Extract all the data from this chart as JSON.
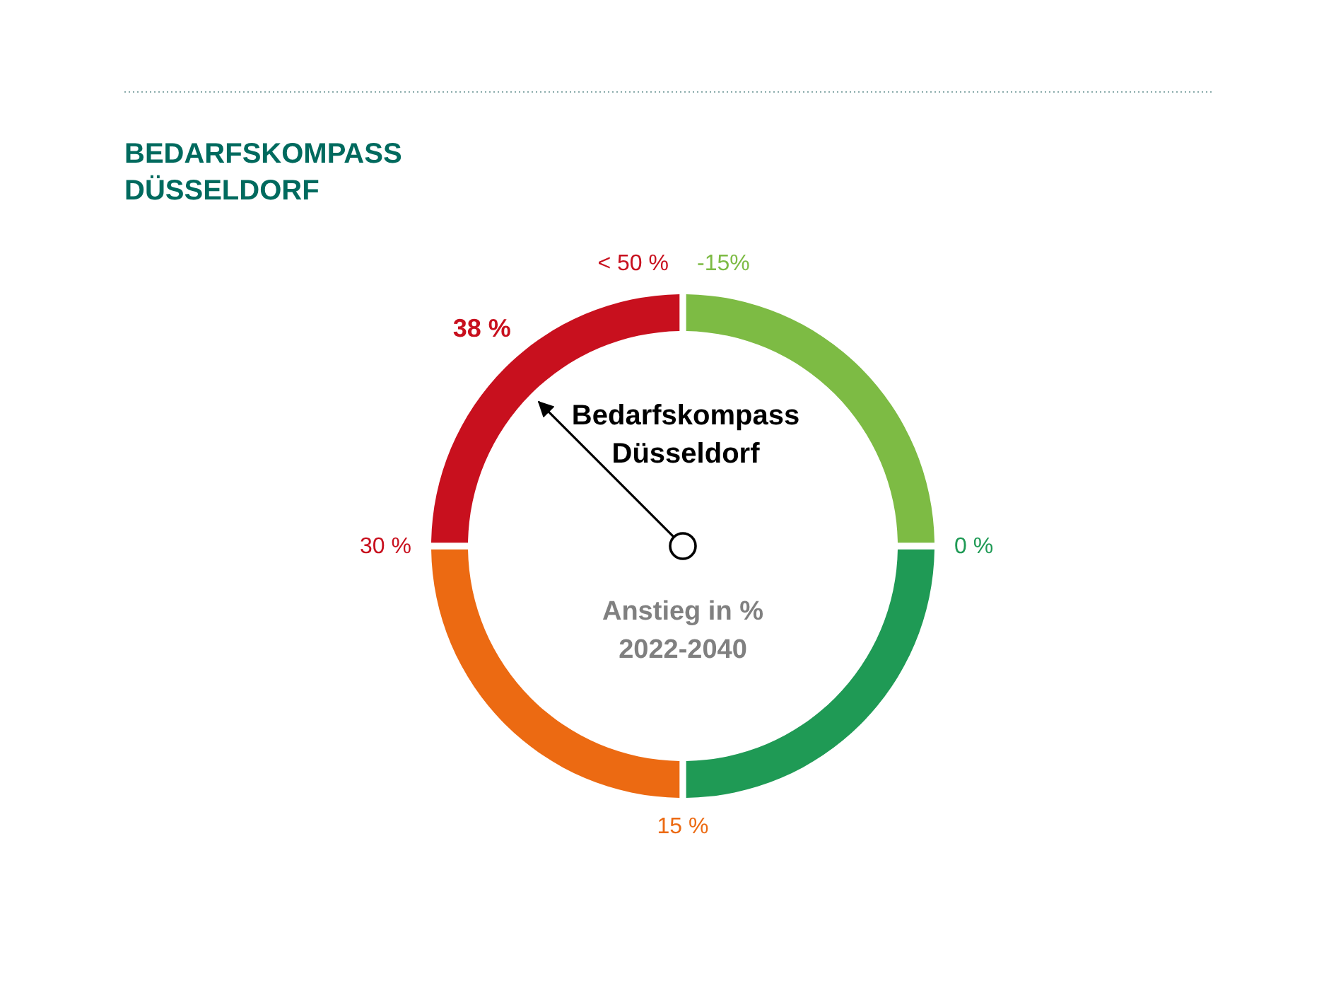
{
  "chart_data": {
    "type": "donut",
    "title": "BEDARFSKOMPASS\nDÜSSELDORF",
    "categories": [
      "-15%",
      "0 %",
      "15 %",
      "30 %"
    ],
    "values": [
      25,
      25,
      25,
      25
    ],
    "colors": [
      "#7dbb44",
      "#1f9a55",
      "#ec6a12",
      "#c8101e"
    ],
    "needle": "30 %",
    "annotations": [
      "< 50 %",
      "38 %",
      "Bedarfskompass\nDüsseldorf",
      "Anstieg in %\n2022-2040"
    ]
  }
}
